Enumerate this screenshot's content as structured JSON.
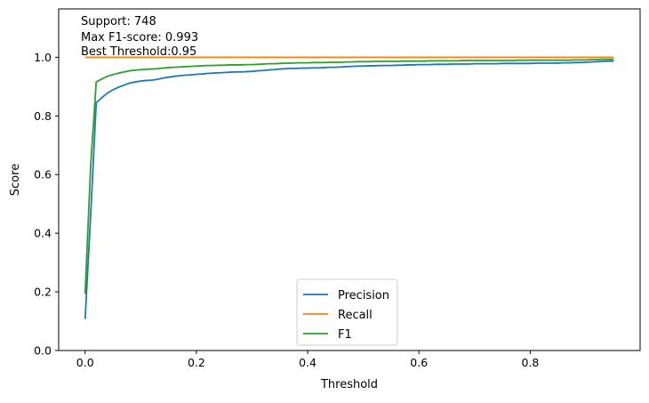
{
  "chart_data": {
    "type": "line",
    "xlabel": "Threshold",
    "ylabel": "Score",
    "xlim": [
      -0.0475,
      0.9975
    ],
    "ylim": [
      0.0,
      1.165
    ],
    "xticks": [
      0.0,
      0.2,
      0.4,
      0.6,
      0.8
    ],
    "xtick_labels": [
      "0.0",
      "0.2",
      "0.4",
      "0.6",
      "0.8"
    ],
    "yticks": [
      0.0,
      0.2,
      0.4,
      0.6,
      0.8,
      1.0
    ],
    "ytick_labels": [
      "0.0",
      "0.2",
      "0.4",
      "0.6",
      "0.8",
      "1.0"
    ],
    "grid": false,
    "legend_position": "bottom-center",
    "annotations": [
      "Support: 748",
      "Max F1-score: 0.993",
      "Best Threshold:0.95"
    ],
    "x": [
      0.0,
      0.01,
      0.02,
      0.03,
      0.04,
      0.05,
      0.06,
      0.07,
      0.08,
      0.09,
      0.1,
      0.11,
      0.12,
      0.13,
      0.14,
      0.15,
      0.16,
      0.17,
      0.18,
      0.19,
      0.2,
      0.21,
      0.22,
      0.23,
      0.24,
      0.25,
      0.26,
      0.27,
      0.28,
      0.29,
      0.3,
      0.31,
      0.32,
      0.33,
      0.34,
      0.35,
      0.36,
      0.37,
      0.38,
      0.39,
      0.4,
      0.41,
      0.42,
      0.43,
      0.44,
      0.45,
      0.46,
      0.47,
      0.48,
      0.49,
      0.5,
      0.51,
      0.52,
      0.53,
      0.54,
      0.55,
      0.56,
      0.57,
      0.58,
      0.59,
      0.6,
      0.61,
      0.62,
      0.63,
      0.64,
      0.65,
      0.66,
      0.67,
      0.68,
      0.69,
      0.7,
      0.71,
      0.72,
      0.73,
      0.74,
      0.75,
      0.76,
      0.77,
      0.78,
      0.79,
      0.8,
      0.81,
      0.82,
      0.83,
      0.84,
      0.85,
      0.86,
      0.87,
      0.88,
      0.89,
      0.9,
      0.91,
      0.92,
      0.93,
      0.94,
      0.95
    ],
    "series": [
      {
        "name": "Precision",
        "color": "#1f77b4",
        "values": [
          0.107,
          0.462,
          0.845,
          0.862,
          0.878,
          0.889,
          0.898,
          0.905,
          0.912,
          0.916,
          0.919,
          0.921,
          0.922,
          0.925,
          0.929,
          0.932,
          0.935,
          0.937,
          0.939,
          0.94,
          0.942,
          0.943,
          0.945,
          0.946,
          0.947,
          0.948,
          0.949,
          0.95,
          0.95,
          0.951,
          0.952,
          0.954,
          0.955,
          0.957,
          0.958,
          0.96,
          0.961,
          0.962,
          0.962,
          0.963,
          0.963,
          0.964,
          0.964,
          0.965,
          0.966,
          0.966,
          0.967,
          0.968,
          0.969,
          0.97,
          0.97,
          0.971,
          0.971,
          0.972,
          0.972,
          0.972,
          0.973,
          0.973,
          0.974,
          0.974,
          0.975,
          0.975,
          0.975,
          0.976,
          0.976,
          0.976,
          0.977,
          0.977,
          0.977,
          0.977,
          0.978,
          0.978,
          0.978,
          0.978,
          0.978,
          0.979,
          0.979,
          0.979,
          0.979,
          0.979,
          0.979,
          0.98,
          0.98,
          0.98,
          0.98,
          0.98,
          0.981,
          0.981,
          0.982,
          0.982,
          0.983,
          0.984,
          0.985,
          0.986,
          0.987,
          0.987
        ]
      },
      {
        "name": "Recall",
        "color": "#ff7f0e",
        "values": [
          1.0,
          1.0,
          1.0,
          1.0,
          1.0,
          1.0,
          1.0,
          1.0,
          1.0,
          1.0,
          1.0,
          1.0,
          1.0,
          1.0,
          1.0,
          1.0,
          1.0,
          1.0,
          1.0,
          1.0,
          1.0,
          1.0,
          1.0,
          1.0,
          1.0,
          1.0,
          1.0,
          1.0,
          1.0,
          1.0,
          1.0,
          1.0,
          1.0,
          1.0,
          1.0,
          1.0,
          1.0,
          1.0,
          1.0,
          1.0,
          1.0,
          1.0,
          1.0,
          1.0,
          1.0,
          1.0,
          1.0,
          1.0,
          1.0,
          1.0,
          1.0,
          1.0,
          1.0,
          1.0,
          1.0,
          1.0,
          1.0,
          1.0,
          1.0,
          1.0,
          1.0,
          1.0,
          1.0,
          1.0,
          1.0,
          1.0,
          1.0,
          1.0,
          1.0,
          1.0,
          1.0,
          1.0,
          1.0,
          1.0,
          1.0,
          1.0,
          1.0,
          1.0,
          1.0,
          1.0,
          1.0,
          1.0,
          1.0,
          1.0,
          1.0,
          1.0,
          1.0,
          1.0,
          1.0,
          1.0,
          1.0,
          1.0,
          1.0,
          1.0,
          1.0,
          1.0
        ]
      },
      {
        "name": "F1",
        "color": "#2ca02c",
        "values": [
          0.193,
          0.632,
          0.916,
          0.926,
          0.935,
          0.941,
          0.946,
          0.95,
          0.954,
          0.956,
          0.958,
          0.959,
          0.96,
          0.961,
          0.963,
          0.965,
          0.966,
          0.967,
          0.968,
          0.969,
          0.97,
          0.971,
          0.972,
          0.972,
          0.973,
          0.973,
          0.974,
          0.974,
          0.974,
          0.975,
          0.975,
          0.976,
          0.977,
          0.978,
          0.978,
          0.979,
          0.98,
          0.98,
          0.981,
          0.981,
          0.981,
          0.982,
          0.982,
          0.982,
          0.983,
          0.983,
          0.983,
          0.984,
          0.984,
          0.985,
          0.985,
          0.985,
          0.986,
          0.986,
          0.986,
          0.986,
          0.986,
          0.987,
          0.987,
          0.987,
          0.987,
          0.987,
          0.988,
          0.988,
          0.988,
          0.988,
          0.988,
          0.988,
          0.989,
          0.989,
          0.989,
          0.989,
          0.989,
          0.989,
          0.989,
          0.989,
          0.989,
          0.989,
          0.99,
          0.99,
          0.99,
          0.99,
          0.99,
          0.99,
          0.99,
          0.99,
          0.99,
          0.99,
          0.991,
          0.991,
          0.991,
          0.992,
          0.992,
          0.993,
          0.993,
          0.993
        ]
      }
    ]
  }
}
